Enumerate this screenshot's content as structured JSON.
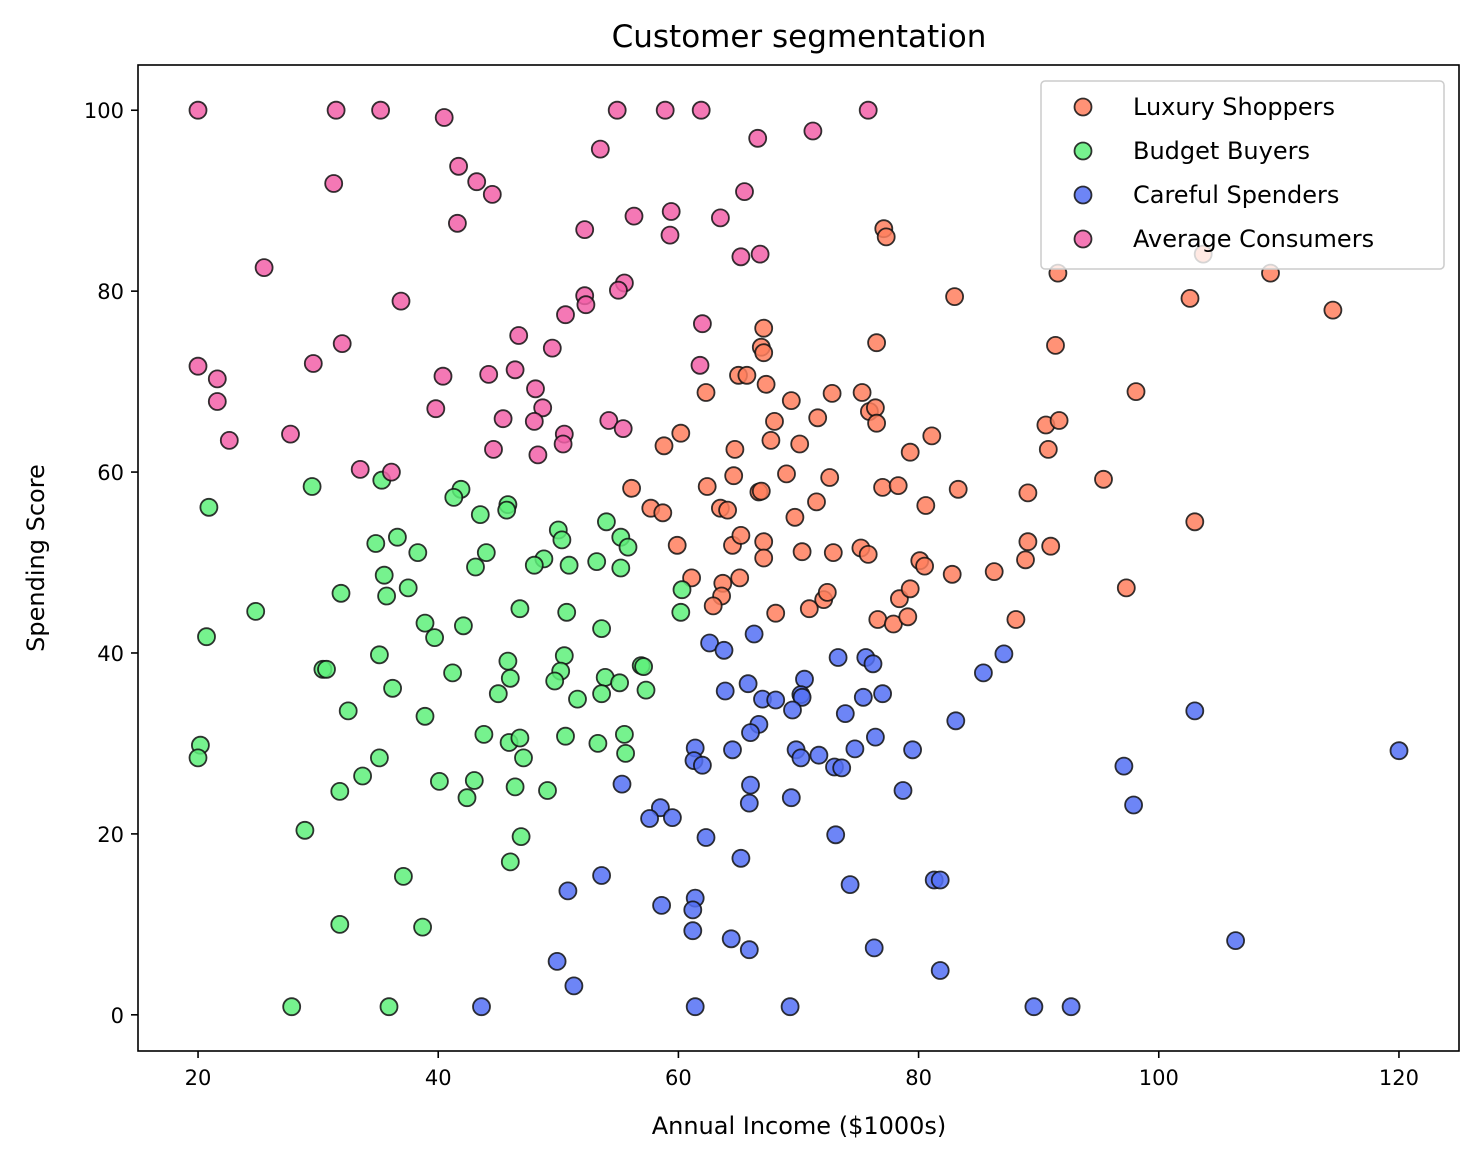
{
  "chart_data": {
    "type": "scatter",
    "title": "Customer segmentation",
    "xlabel": "Annual Income ($1000s)",
    "ylabel": "Spending Score",
    "xlim": [
      15,
      125
    ],
    "ylim": [
      -4,
      105
    ],
    "xticks": [
      20,
      40,
      60,
      80,
      100,
      120
    ],
    "yticks": [
      0,
      20,
      40,
      60,
      80,
      100
    ],
    "grid": false,
    "legend": "top-right",
    "series": [
      {
        "name": "Luxury Shoppers",
        "color": "#ff7f5e",
        "points": [
          [
            77.1,
            86.9
          ],
          [
            77.3,
            86.0
          ],
          [
            103.7,
            84.1
          ],
          [
            91.6,
            82.0
          ],
          [
            109.3,
            82.0
          ],
          [
            83.0,
            79.4
          ],
          [
            102.6,
            79.2
          ],
          [
            114.5,
            77.9
          ],
          [
            67.1,
            75.9
          ],
          [
            76.5,
            74.3
          ],
          [
            91.4,
            74.0
          ],
          [
            66.9,
            73.8
          ],
          [
            67.1,
            73.2
          ],
          [
            65.0,
            70.7
          ],
          [
            65.7,
            70.7
          ],
          [
            67.3,
            69.7
          ],
          [
            98.1,
            68.9
          ],
          [
            62.3,
            68.8
          ],
          [
            72.8,
            68.7
          ],
          [
            75.3,
            68.8
          ],
          [
            69.4,
            67.9
          ],
          [
            75.9,
            66.7
          ],
          [
            76.4,
            67.1
          ],
          [
            71.6,
            66.0
          ],
          [
            68.0,
            65.6
          ],
          [
            76.5,
            65.4
          ],
          [
            90.6,
            65.2
          ],
          [
            91.7,
            65.7
          ],
          [
            60.2,
            64.3
          ],
          [
            67.7,
            63.5
          ],
          [
            70.1,
            63.1
          ],
          [
            58.8,
            62.9
          ],
          [
            81.1,
            64.0
          ],
          [
            64.7,
            62.5
          ],
          [
            79.3,
            62.2
          ],
          [
            90.8,
            62.5
          ],
          [
            95.4,
            59.2
          ],
          [
            64.6,
            59.6
          ],
          [
            69.0,
            59.8
          ],
          [
            72.6,
            59.4
          ],
          [
            56.1,
            58.2
          ],
          [
            62.4,
            58.4
          ],
          [
            66.7,
            57.8
          ],
          [
            66.9,
            57.9
          ],
          [
            77.0,
            58.3
          ],
          [
            78.3,
            58.5
          ],
          [
            83.3,
            58.1
          ],
          [
            89.1,
            57.7
          ],
          [
            57.7,
            56.0
          ],
          [
            58.7,
            55.5
          ],
          [
            63.5,
            56.0
          ],
          [
            64.1,
            55.8
          ],
          [
            71.5,
            56.7
          ],
          [
            80.6,
            56.3
          ],
          [
            69.7,
            55.0
          ],
          [
            103.0,
            54.5
          ],
          [
            59.9,
            51.9
          ],
          [
            64.5,
            51.9
          ],
          [
            65.2,
            53.0
          ],
          [
            67.1,
            52.3
          ],
          [
            70.3,
            51.2
          ],
          [
            72.9,
            51.1
          ],
          [
            75.2,
            51.6
          ],
          [
            75.8,
            50.9
          ],
          [
            89.1,
            52.3
          ],
          [
            91.0,
            51.8
          ],
          [
            67.1,
            50.5
          ],
          [
            80.1,
            50.2
          ],
          [
            80.5,
            49.6
          ],
          [
            82.8,
            48.7
          ],
          [
            86.3,
            49.0
          ],
          [
            88.9,
            50.3
          ],
          [
            61.1,
            48.3
          ],
          [
            63.7,
            47.7
          ],
          [
            65.1,
            48.3
          ],
          [
            63.6,
            46.3
          ],
          [
            72.1,
            45.9
          ],
          [
            72.4,
            46.7
          ],
          [
            62.9,
            45.2
          ],
          [
            68.1,
            44.4
          ],
          [
            70.9,
            44.9
          ],
          [
            78.4,
            46.0
          ],
          [
            79.3,
            47.1
          ],
          [
            97.3,
            47.2
          ],
          [
            76.6,
            43.7
          ],
          [
            77.9,
            43.2
          ],
          [
            79.1,
            44.0
          ],
          [
            88.1,
            43.7
          ]
        ]
      },
      {
        "name": "Budget Buyers",
        "color": "#5ef07a",
        "points": [
          [
            29.5,
            58.4
          ],
          [
            35.3,
            59.1
          ],
          [
            41.9,
            58.1
          ],
          [
            41.3,
            57.2
          ],
          [
            20.9,
            56.1
          ],
          [
            43.5,
            55.3
          ],
          [
            45.8,
            56.4
          ],
          [
            45.7,
            55.8
          ],
          [
            54.0,
            54.5
          ],
          [
            50.0,
            53.6
          ],
          [
            55.2,
            52.8
          ],
          [
            36.6,
            52.8
          ],
          [
            34.8,
            52.1
          ],
          [
            50.3,
            52.5
          ],
          [
            55.8,
            51.7
          ],
          [
            38.3,
            51.1
          ],
          [
            44.0,
            51.1
          ],
          [
            48.8,
            50.4
          ],
          [
            53.2,
            50.1
          ],
          [
            50.9,
            49.7
          ],
          [
            55.2,
            49.4
          ],
          [
            43.1,
            49.5
          ],
          [
            35.5,
            48.6
          ],
          [
            48.0,
            49.7
          ],
          [
            37.5,
            47.2
          ],
          [
            31.9,
            46.6
          ],
          [
            35.7,
            46.3
          ],
          [
            60.3,
            47.0
          ],
          [
            24.8,
            44.6
          ],
          [
            46.8,
            44.9
          ],
          [
            50.7,
            44.5
          ],
          [
            60.2,
            44.5
          ],
          [
            38.9,
            43.3
          ],
          [
            42.1,
            43.0
          ],
          [
            53.6,
            42.7
          ],
          [
            20.7,
            41.8
          ],
          [
            39.7,
            41.7
          ],
          [
            35.1,
            39.8
          ],
          [
            45.8,
            39.1
          ],
          [
            50.5,
            39.7
          ],
          [
            30.4,
            38.2
          ],
          [
            30.7,
            38.2
          ],
          [
            41.2,
            37.8
          ],
          [
            50.2,
            38.0
          ],
          [
            56.9,
            38.6
          ],
          [
            57.1,
            38.5
          ],
          [
            46.0,
            37.2
          ],
          [
            53.9,
            37.3
          ],
          [
            55.1,
            36.7
          ],
          [
            49.7,
            36.9
          ],
          [
            36.2,
            36.1
          ],
          [
            57.3,
            35.9
          ],
          [
            45.0,
            35.5
          ],
          [
            53.6,
            35.5
          ],
          [
            51.6,
            34.9
          ],
          [
            32.5,
            33.6
          ],
          [
            38.9,
            33.0
          ],
          [
            43.8,
            31.0
          ],
          [
            55.5,
            31.0
          ],
          [
            50.6,
            30.8
          ],
          [
            45.9,
            30.1
          ],
          [
            46.8,
            30.6
          ],
          [
            53.3,
            30.0
          ],
          [
            20.2,
            29.8
          ],
          [
            20.0,
            28.4
          ],
          [
            35.1,
            28.4
          ],
          [
            47.1,
            28.4
          ],
          [
            55.6,
            28.9
          ],
          [
            33.7,
            26.4
          ],
          [
            43.0,
            25.9
          ],
          [
            40.1,
            25.8
          ],
          [
            46.4,
            25.2
          ],
          [
            31.8,
            24.7
          ],
          [
            42.4,
            24.0
          ],
          [
            49.1,
            24.8
          ],
          [
            28.9,
            20.4
          ],
          [
            46.9,
            19.7
          ],
          [
            46.0,
            16.9
          ],
          [
            37.1,
            15.3
          ],
          [
            31.8,
            10.0
          ],
          [
            38.7,
            9.7
          ],
          [
            27.8,
            0.9
          ],
          [
            35.9,
            0.9
          ]
        ]
      },
      {
        "name": "Careful Spenders",
        "color": "#5470f5",
        "points": [
          [
            66.3,
            42.1
          ],
          [
            62.6,
            41.1
          ],
          [
            63.8,
            40.3
          ],
          [
            87.1,
            39.9
          ],
          [
            73.3,
            39.5
          ],
          [
            75.6,
            39.5
          ],
          [
            76.2,
            38.8
          ],
          [
            85.4,
            37.8
          ],
          [
            70.5,
            37.1
          ],
          [
            65.8,
            36.6
          ],
          [
            63.9,
            35.8
          ],
          [
            67.0,
            34.9
          ],
          [
            68.1,
            34.8
          ],
          [
            70.2,
            35.4
          ],
          [
            70.3,
            35.1
          ],
          [
            75.4,
            35.1
          ],
          [
            77.0,
            35.5
          ],
          [
            69.5,
            33.7
          ],
          [
            73.9,
            33.3
          ],
          [
            83.1,
            32.5
          ],
          [
            103.0,
            33.6
          ],
          [
            66.7,
            32.1
          ],
          [
            66.0,
            31.2
          ],
          [
            76.4,
            30.7
          ],
          [
            61.4,
            29.5
          ],
          [
            64.5,
            29.3
          ],
          [
            69.8,
            29.3
          ],
          [
            74.7,
            29.4
          ],
          [
            79.5,
            29.3
          ],
          [
            120.0,
            29.2
          ],
          [
            61.3,
            28.1
          ],
          [
            62.0,
            27.6
          ],
          [
            70.2,
            28.4
          ],
          [
            71.7,
            28.7
          ],
          [
            73.0,
            27.4
          ],
          [
            73.6,
            27.3
          ],
          [
            97.1,
            27.5
          ],
          [
            55.3,
            25.5
          ],
          [
            66.0,
            25.4
          ],
          [
            78.7,
            24.8
          ],
          [
            65.9,
            23.4
          ],
          [
            69.4,
            24.0
          ],
          [
            97.9,
            23.2
          ],
          [
            58.5,
            22.9
          ],
          [
            57.6,
            21.7
          ],
          [
            59.5,
            21.8
          ],
          [
            62.3,
            19.6
          ],
          [
            73.1,
            19.9
          ],
          [
            65.2,
            17.3
          ],
          [
            53.6,
            15.4
          ],
          [
            74.3,
            14.4
          ],
          [
            81.3,
            14.9
          ],
          [
            81.8,
            14.9
          ],
          [
            50.8,
            13.7
          ],
          [
            61.4,
            12.9
          ],
          [
            58.6,
            12.1
          ],
          [
            61.2,
            11.6
          ],
          [
            61.2,
            9.3
          ],
          [
            64.4,
            8.4
          ],
          [
            65.9,
            7.2
          ],
          [
            76.3,
            7.4
          ],
          [
            106.4,
            8.2
          ],
          [
            49.9,
            5.9
          ],
          [
            51.3,
            3.2
          ],
          [
            81.8,
            4.9
          ],
          [
            43.6,
            0.9
          ],
          [
            61.4,
            0.9
          ],
          [
            69.3,
            0.9
          ],
          [
            89.6,
            0.9
          ],
          [
            92.7,
            0.9
          ]
        ]
      },
      {
        "name": "Average Consumers",
        "color": "#f260a8",
        "points": [
          [
            20.0,
            100.0
          ],
          [
            31.5,
            100.0
          ],
          [
            35.2,
            100.0
          ],
          [
            54.9,
            100.0
          ],
          [
            58.9,
            100.0
          ],
          [
            61.9,
            100.0
          ],
          [
            75.8,
            100.0
          ],
          [
            40.5,
            99.2
          ],
          [
            71.2,
            97.7
          ],
          [
            66.6,
            96.9
          ],
          [
            53.5,
            95.7
          ],
          [
            41.7,
            93.8
          ],
          [
            43.2,
            92.1
          ],
          [
            31.3,
            91.9
          ],
          [
            44.5,
            90.7
          ],
          [
            65.5,
            91.0
          ],
          [
            59.4,
            88.8
          ],
          [
            56.3,
            88.3
          ],
          [
            63.5,
            88.1
          ],
          [
            41.6,
            87.5
          ],
          [
            52.2,
            86.8
          ],
          [
            59.3,
            86.2
          ],
          [
            65.2,
            83.8
          ],
          [
            66.8,
            84.1
          ],
          [
            25.5,
            82.6
          ],
          [
            55.5,
            80.9
          ],
          [
            55.0,
            80.1
          ],
          [
            52.2,
            79.5
          ],
          [
            52.3,
            78.5
          ],
          [
            36.9,
            78.9
          ],
          [
            50.6,
            77.4
          ],
          [
            62.0,
            76.4
          ],
          [
            46.7,
            75.1
          ],
          [
            32.0,
            74.2
          ],
          [
            49.5,
            73.7
          ],
          [
            20.0,
            71.7
          ],
          [
            29.6,
            72.0
          ],
          [
            61.8,
            71.8
          ],
          [
            21.6,
            70.3
          ],
          [
            40.4,
            70.6
          ],
          [
            44.2,
            70.8
          ],
          [
            46.4,
            71.3
          ],
          [
            48.1,
            69.2
          ],
          [
            21.6,
            67.8
          ],
          [
            39.8,
            67.0
          ],
          [
            48.7,
            67.1
          ],
          [
            45.4,
            65.9
          ],
          [
            48.0,
            65.6
          ],
          [
            54.2,
            65.7
          ],
          [
            55.4,
            64.8
          ],
          [
            27.7,
            64.2
          ],
          [
            50.5,
            64.2
          ],
          [
            22.6,
            63.5
          ],
          [
            50.4,
            63.1
          ],
          [
            44.6,
            62.5
          ],
          [
            48.3,
            61.9
          ],
          [
            33.5,
            60.3
          ],
          [
            36.1,
            60.0
          ]
        ]
      }
    ]
  }
}
